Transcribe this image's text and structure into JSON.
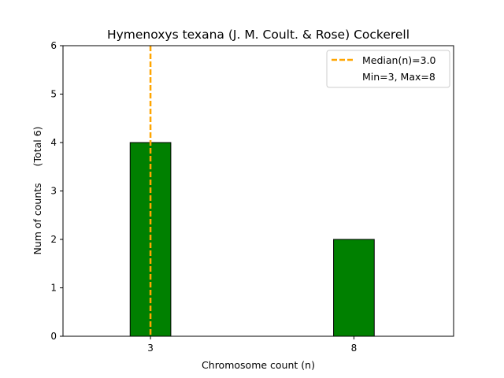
{
  "chart_data": {
    "type": "bar",
    "title": "Hymenoxys texana (J. M. Coult. & Rose) Cockerell",
    "xlabel": "Chromosome count (n)",
    "ylabel": "Num of counts",
    "ylabel_extra": "(Total 6)",
    "categories": [
      "3",
      "8"
    ],
    "x": [
      3,
      8
    ],
    "values": [
      4,
      2
    ],
    "xlim": [
      0.85,
      10.45
    ],
    "ylim": [
      0,
      6
    ],
    "yticks": [
      0,
      1,
      2,
      3,
      4,
      5,
      6
    ],
    "bar_color": "#008000",
    "bar_edge_color": "#000000",
    "median": 3.0,
    "median_color": "#FFA500",
    "legend": {
      "position": "top-right",
      "median_label": "Median(n)=3.0",
      "range_label": "Min=3, Max=8"
    },
    "grid": false
  }
}
